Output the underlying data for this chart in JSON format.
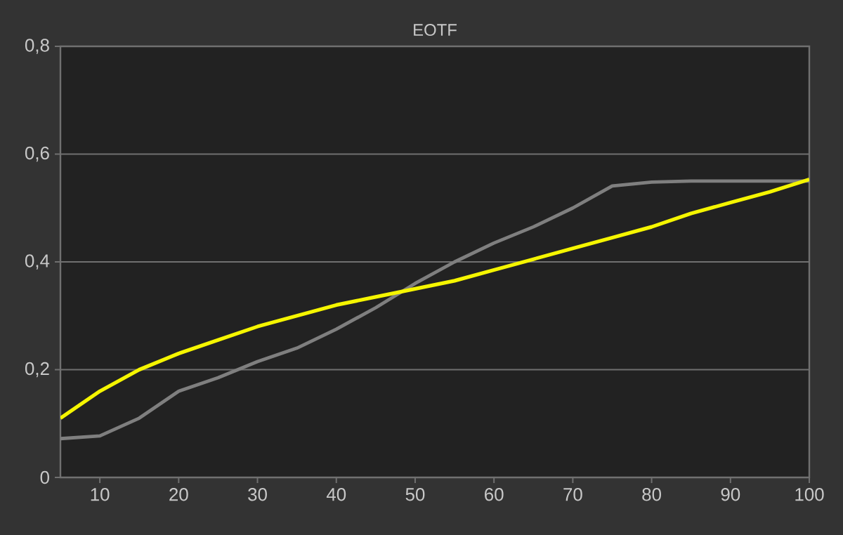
{
  "chart_data": {
    "type": "line",
    "title": "EOTF",
    "xlim": [
      5,
      100
    ],
    "ylim": [
      0,
      0.8
    ],
    "xticks": [
      10,
      20,
      30,
      40,
      50,
      60,
      70,
      80,
      90,
      100
    ],
    "yticks": [
      0,
      {
        "value": 0.2,
        "label": "0,2"
      },
      {
        "value": 0.4,
        "label": "0,4"
      },
      {
        "value": 0.6,
        "label": "0,6"
      },
      {
        "value": 0.8,
        "label": "0,8"
      }
    ],
    "grid": "y",
    "marker": "none",
    "line_style": "solid",
    "x": [
      5,
      10,
      15,
      20,
      25,
      30,
      35,
      40,
      45,
      50,
      55,
      60,
      65,
      70,
      75,
      80,
      85,
      90,
      95,
      100
    ],
    "series": [
      {
        "color": "#7f7f7f",
        "values": [
          0.072,
          0.077,
          0.11,
          0.16,
          0.185,
          0.215,
          0.24,
          0.275,
          0.315,
          0.36,
          0.4,
          0.435,
          0.465,
          0.5,
          0.541,
          0.548,
          0.55,
          0.55,
          0.55,
          0.55
        ]
      },
      {
        "color": "#f5f500",
        "values": [
          0.11,
          0.16,
          0.2,
          0.23,
          0.255,
          0.28,
          0.3,
          0.32,
          0.335,
          0.35,
          0.365,
          0.385,
          0.405,
          0.425,
          0.445,
          0.465,
          0.49,
          0.51,
          0.53,
          0.553
        ]
      }
    ]
  }
}
